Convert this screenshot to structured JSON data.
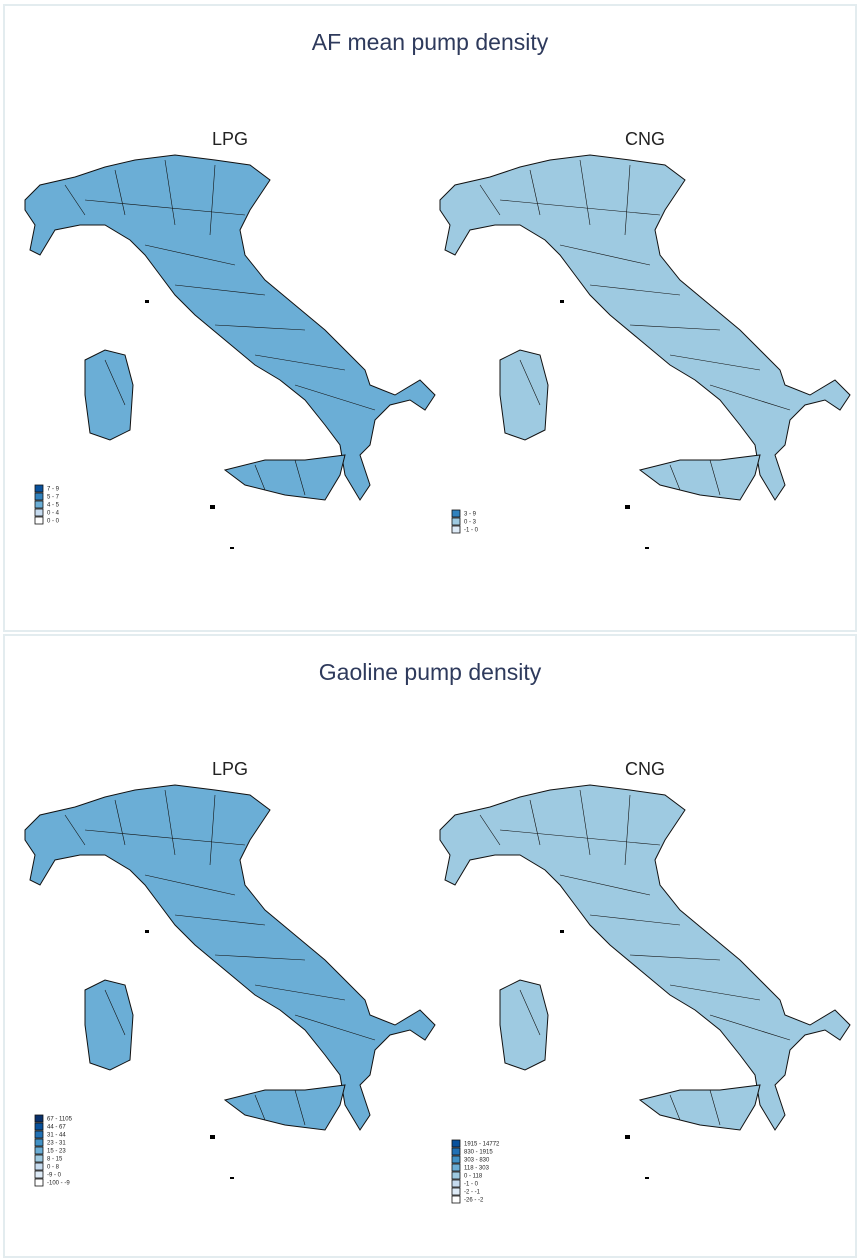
{
  "panels": [
    {
      "title": "AF mean pump density",
      "maps": [
        {
          "title": "LPG",
          "legend": [
            {
              "label": "7 - 9",
              "color": "#08519c"
            },
            {
              "label": "5 - 7",
              "color": "#3182bd"
            },
            {
              "label": "4 - 5",
              "color": "#6baed6"
            },
            {
              "label": "0 - 4",
              "color": "#c6dbef"
            },
            {
              "label": "0 - 0",
              "color": "#ffffff"
            }
          ]
        },
        {
          "title": "CNG",
          "legend": [
            {
              "label": "3 - 9",
              "color": "#3182bd"
            },
            {
              "label": "0 - 3",
              "color": "#9ecae1"
            },
            {
              "label": "-1 - 0",
              "color": "#deebf7"
            }
          ]
        }
      ]
    },
    {
      "title": "Gaoline pump density",
      "maps": [
        {
          "title": "LPG",
          "legend": [
            {
              "label": "67 - 1105",
              "color": "#08306b"
            },
            {
              "label": "44 - 67",
              "color": "#08519c"
            },
            {
              "label": "31 - 44",
              "color": "#2171b5"
            },
            {
              "label": "23 - 31",
              "color": "#4292c6"
            },
            {
              "label": "15 - 23",
              "color": "#6baed6"
            },
            {
              "label": "8 - 15",
              "color": "#9ecae1"
            },
            {
              "label": "0 - 8",
              "color": "#c6dbef"
            },
            {
              "label": "-9 - 0",
              "color": "#deebf7"
            },
            {
              "label": "-100 - -9",
              "color": "#ffffff"
            }
          ]
        },
        {
          "title": "CNG",
          "legend": [
            {
              "label": "1915 - 14772",
              "color": "#08519c"
            },
            {
              "label": "830 - 1915",
              "color": "#2171b5"
            },
            {
              "label": "303 - 830",
              "color": "#4292c6"
            },
            {
              "label": "118 - 303",
              "color": "#6baed6"
            },
            {
              "label": "0 - 118",
              "color": "#9ecae1"
            },
            {
              "label": "-1 - 0",
              "color": "#c6dbef"
            },
            {
              "label": "-2 - -1",
              "color": "#deebf7"
            },
            {
              "label": "-26 - -2",
              "color": "#ffffff"
            }
          ]
        }
      ]
    }
  ]
}
